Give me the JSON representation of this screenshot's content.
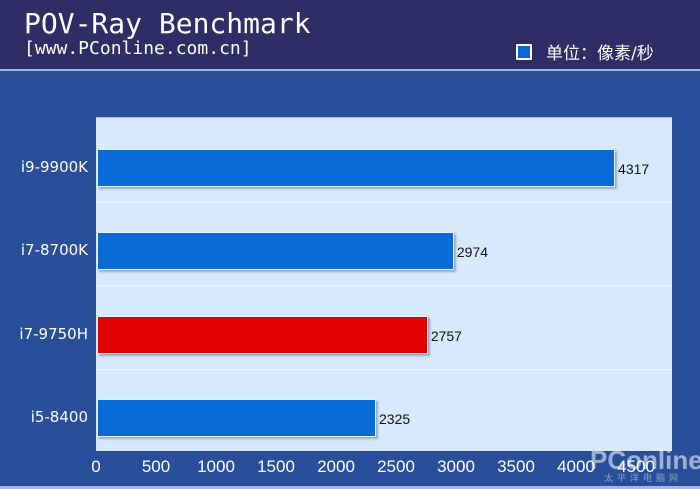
{
  "header": {
    "title": "POV-Ray Benchmark",
    "subtitle": "[www.PConline.com.cn]",
    "legend_label": "单位：像素/秒"
  },
  "watermark": {
    "brand": "PConline",
    "sub": "太平洋电脑网"
  },
  "colors": {
    "bar_default": "#0a6bd6",
    "bar_highlight": "#e00000",
    "background": "#2a4f9a",
    "header": "#2e2d66",
    "plot_bg": "#d6e9fd"
  },
  "chart_data": {
    "type": "bar",
    "orientation": "horizontal",
    "title": "POV-Ray Benchmark",
    "subtitle": "[www.PConline.com.cn]",
    "categories": [
      "i9-9900K",
      "i7-8700K",
      "i7-9750H",
      "i5-8400"
    ],
    "values": [
      4317,
      2974,
      2757,
      2325
    ],
    "highlight": "i7-9750H",
    "xlabel": "",
    "ylabel": "",
    "unit": "单位：像素/秒",
    "legend": [
      "单位：像素/秒"
    ],
    "legend_position": "top-right",
    "xlim": [
      0,
      4800
    ],
    "xticks": [
      "0",
      "500",
      "1000",
      "1500",
      "2000",
      "2500",
      "3000",
      "3500",
      "4000",
      "4500"
    ],
    "grid": false
  },
  "bars": [
    {
      "label": "i9-9900K",
      "value": "4317",
      "num": 4317,
      "color": "#0a6bd6"
    },
    {
      "label": "i7-8700K",
      "value": "2974",
      "num": 2974,
      "color": "#0a6bd6"
    },
    {
      "label": "i7-9750H",
      "value": "2757",
      "num": 2757,
      "color": "#e00000"
    },
    {
      "label": "i5-8400",
      "value": "2325",
      "num": 2325,
      "color": "#0a6bd6"
    }
  ]
}
